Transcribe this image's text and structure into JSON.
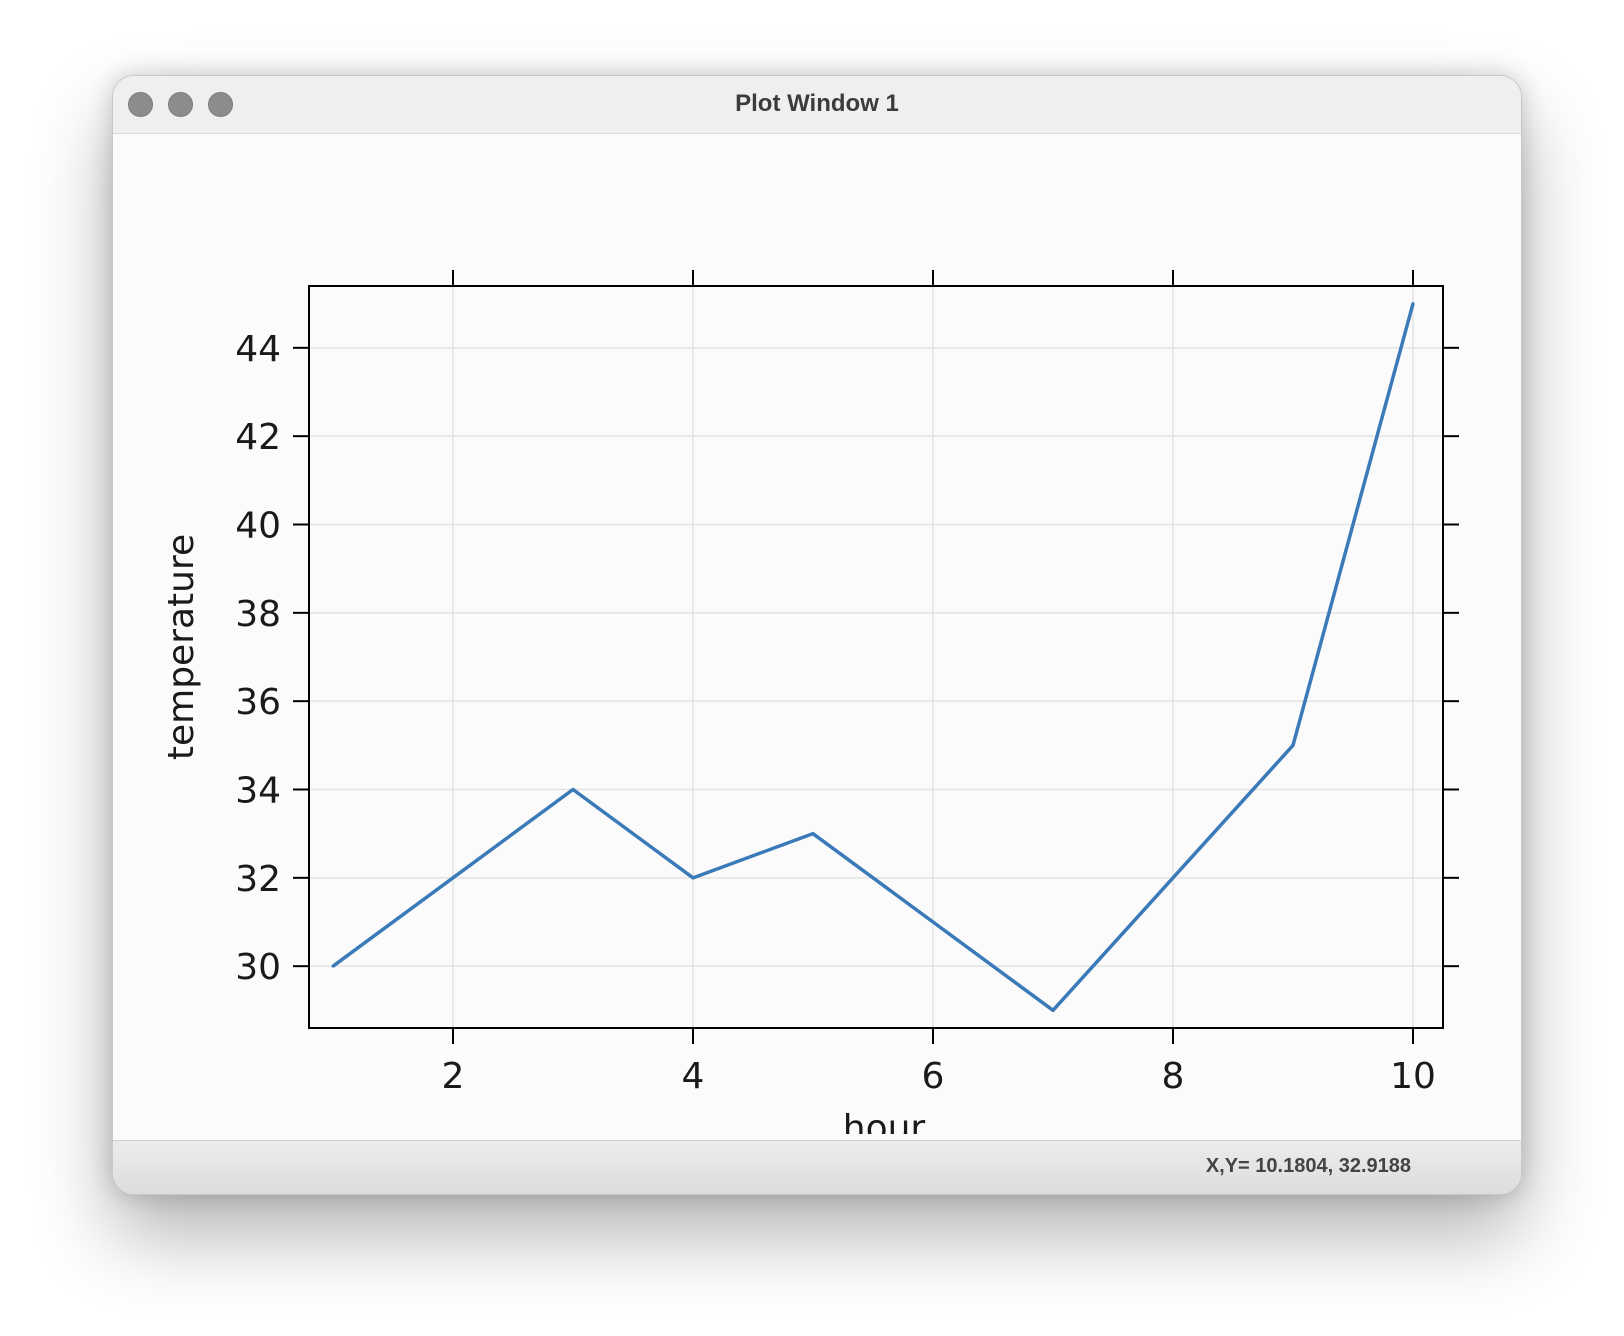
{
  "window": {
    "title": "Plot Window 1"
  },
  "status": {
    "coords": "X,Y= 10.1804, 32.9188"
  },
  "colors": {
    "line": "#3a7ab8",
    "grid": "#e3e3e3",
    "axis": "#000000"
  },
  "chart_data": {
    "type": "line",
    "title": "",
    "xlabel": "hour",
    "ylabel": "temperature",
    "x": [
      1,
      2,
      3,
      4,
      5,
      6,
      7,
      8,
      9,
      10
    ],
    "series": [
      {
        "name": "temperature",
        "values": [
          30,
          32,
          34,
          32,
          33,
          31,
          29,
          32,
          35,
          45
        ]
      }
    ],
    "xlim": [
      0.8,
      10.25
    ],
    "ylim": [
      28.6,
      45.4
    ],
    "xticks": [
      2,
      4,
      6,
      8,
      10
    ],
    "yticks": [
      30,
      32,
      34,
      36,
      38,
      40,
      42,
      44
    ],
    "grid": true
  }
}
